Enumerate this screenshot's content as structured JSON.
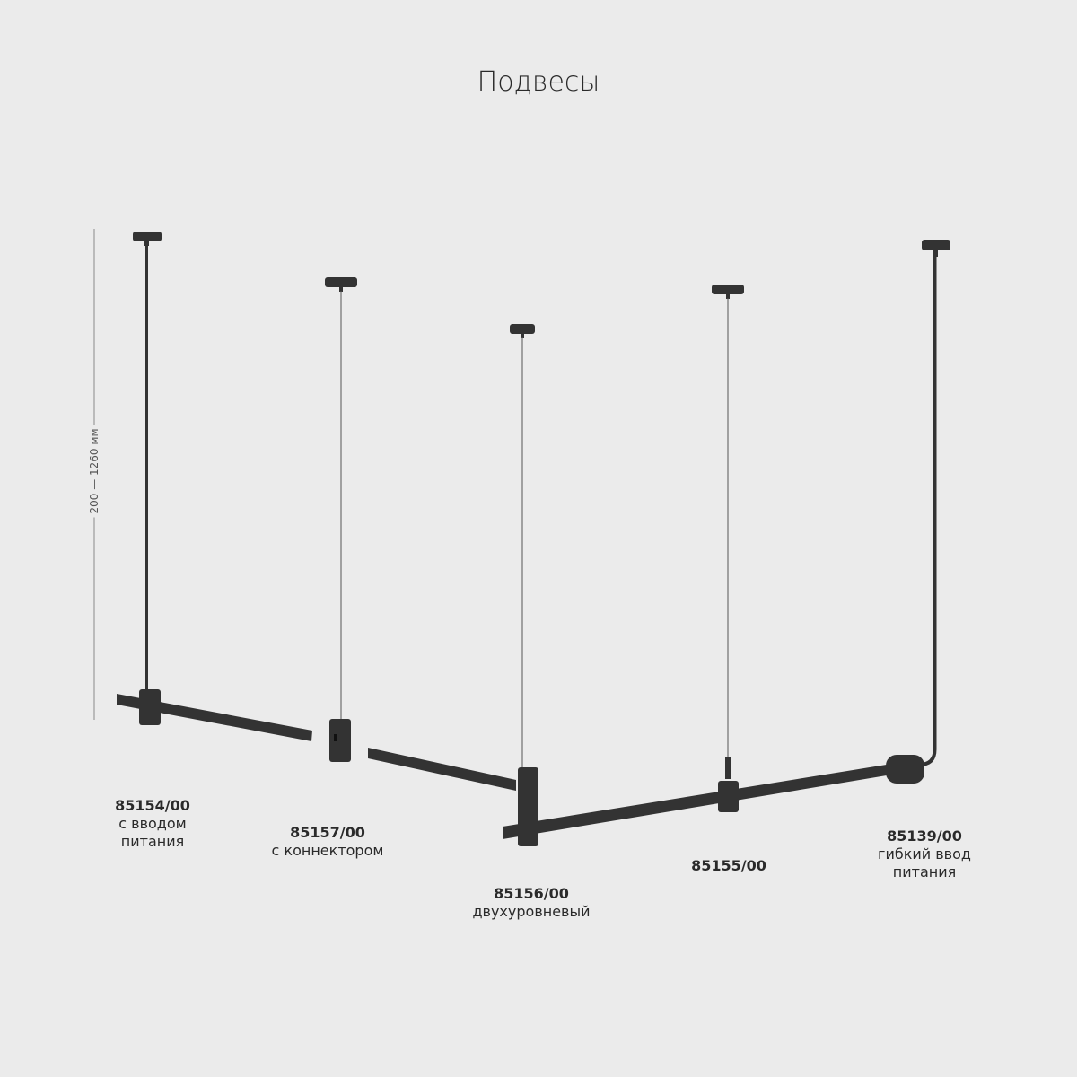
{
  "title": "Подвесы",
  "dimension_label": "200 — 1260 мм",
  "colors": {
    "background": "#ebebeb",
    "product": "#333333"
  },
  "products": [
    {
      "code": "85154/00",
      "desc": [
        "с вводом",
        "питания"
      ]
    },
    {
      "code": "85157/00",
      "desc": [
        "с коннектором"
      ]
    },
    {
      "code": "85156/00",
      "desc": [
        "двухуровневый"
      ]
    },
    {
      "code": "85155/00",
      "desc": []
    },
    {
      "code": "85139/00",
      "desc": [
        "гибкий ввод",
        "питания"
      ]
    }
  ]
}
